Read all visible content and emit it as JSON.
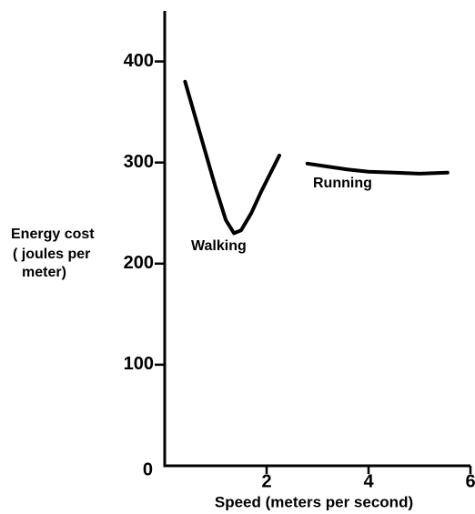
{
  "chart_data": {
    "type": "line",
    "xlabel": "Speed (meters per second)",
    "ylabel": [
      "Energy cost",
      "( joules per",
      "meter)"
    ],
    "xlim": [
      0,
      6
    ],
    "xticks": [
      2,
      4,
      6
    ],
    "ylim": [
      0,
      450
    ],
    "yticks": [
      0,
      100,
      200,
      300,
      400
    ],
    "series": [
      {
        "name": "Walking",
        "color": "#000000",
        "x": [
          0.4,
          0.6,
          0.8,
          1.0,
          1.2,
          1.36,
          1.5,
          1.7,
          1.9,
          2.1,
          2.25
        ],
        "values": [
          380,
          345,
          310,
          275,
          243,
          230,
          233,
          250,
          272,
          292,
          307
        ]
      },
      {
        "name": "Running",
        "color": "#000000",
        "x": [
          2.8,
          3.2,
          3.6,
          4.0,
          4.5,
          5.0,
          5.55
        ],
        "values": [
          299,
          296,
          293,
          291,
          290,
          289,
          290
        ]
      }
    ]
  }
}
